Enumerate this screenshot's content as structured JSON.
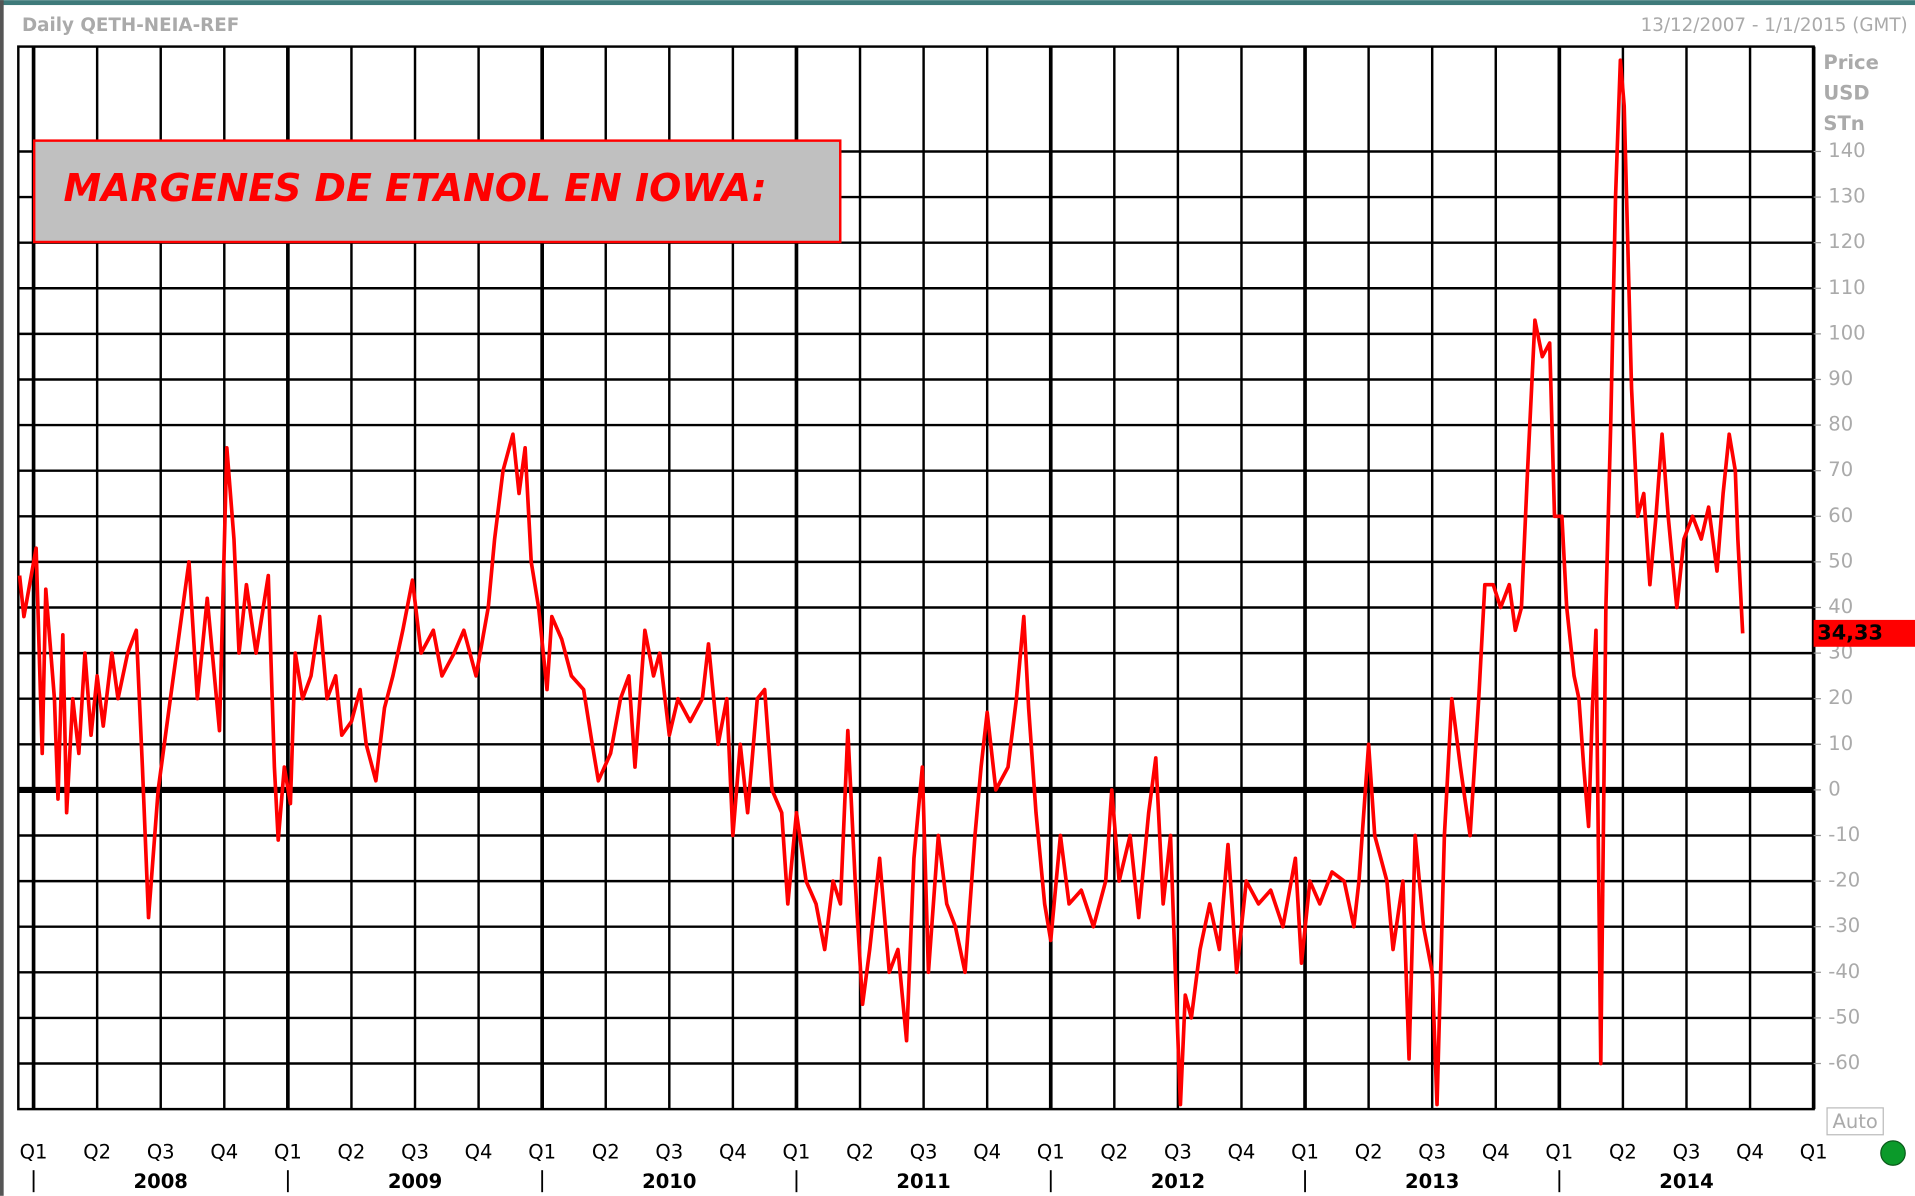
{
  "chart_data": {
    "type": "line",
    "header": "Daily QETH-NEIA-REF",
    "date_range": "13/12/2007 - 1/1/2015 (GMT)",
    "title": "MARGENES DE ETANOL EN IOWA:",
    "ylabel": [
      "Price",
      "USD",
      "STn"
    ],
    "auto_button": "Auto",
    "color": "#ff0000",
    "xlim": [
      2007.94,
      2015.0
    ],
    "ylim": [
      -70,
      163
    ],
    "yticks": [
      -60,
      -50,
      -40,
      -30,
      -20,
      -10,
      0,
      10,
      20,
      30,
      40,
      50,
      60,
      70,
      80,
      90,
      100,
      110,
      120,
      130,
      140
    ],
    "xticks": [
      {
        "value": 2008,
        "label": "Q1"
      },
      {
        "value": 2008.25,
        "label": "Q2"
      },
      {
        "value": 2008.5,
        "label": "Q3"
      },
      {
        "value": 2008.75,
        "label": "Q4"
      },
      {
        "value": 2009,
        "label": "Q1"
      },
      {
        "value": 2009.25,
        "label": "Q2"
      },
      {
        "value": 2009.5,
        "label": "Q3"
      },
      {
        "value": 2009.75,
        "label": "Q4"
      },
      {
        "value": 2010,
        "label": "Q1"
      },
      {
        "value": 2010.25,
        "label": "Q2"
      },
      {
        "value": 2010.5,
        "label": "Q3"
      },
      {
        "value": 2010.75,
        "label": "Q4"
      },
      {
        "value": 2011,
        "label": "Q1"
      },
      {
        "value": 2011.25,
        "label": "Q2"
      },
      {
        "value": 2011.5,
        "label": "Q3"
      },
      {
        "value": 2011.75,
        "label": "Q4"
      },
      {
        "value": 2012,
        "label": "Q1"
      },
      {
        "value": 2012.25,
        "label": "Q2"
      },
      {
        "value": 2012.5,
        "label": "Q3"
      },
      {
        "value": 2012.75,
        "label": "Q4"
      },
      {
        "value": 2013,
        "label": "Q1"
      },
      {
        "value": 2013.25,
        "label": "Q2"
      },
      {
        "value": 2013.5,
        "label": "Q3"
      },
      {
        "value": 2013.75,
        "label": "Q4"
      },
      {
        "value": 2014,
        "label": "Q1"
      },
      {
        "value": 2014.25,
        "label": "Q2"
      },
      {
        "value": 2014.5,
        "label": "Q3"
      },
      {
        "value": 2014.75,
        "label": "Q4"
      },
      {
        "value": 2015,
        "label": "Q1"
      }
    ],
    "year_ticks": [
      2008,
      2009,
      2010,
      2011,
      2012,
      2013,
      2014
    ],
    "grid": true,
    "x": [
      2007.945,
      2007.962,
      2008.01,
      2008.034,
      2008.048,
      2008.082,
      2008.096,
      2008.115,
      2008.13,
      2008.154,
      2008.178,
      2008.202,
      2008.226,
      2008.25,
      2008.274,
      2008.308,
      2008.332,
      2008.37,
      2008.404,
      2008.428,
      2008.452,
      2008.49,
      2008.538,
      2008.611,
      2008.644,
      2008.683,
      2008.731,
      2008.76,
      2008.788,
      2008.808,
      2008.837,
      2008.875,
      2008.923,
      2008.947,
      2008.962,
      2008.986,
      2009.01,
      2009.029,
      2009.058,
      2009.091,
      2009.125,
      2009.154,
      2009.188,
      2009.212,
      2009.25,
      2009.284,
      2009.308,
      2009.346,
      2009.38,
      2009.413,
      2009.452,
      2009.49,
      2009.524,
      2009.572,
      2009.606,
      2009.654,
      2009.692,
      2009.74,
      2009.788,
      2009.813,
      2009.846,
      2009.885,
      2009.909,
      2009.933,
      2009.957,
      2009.986,
      2010.019,
      2010.038,
      2010.077,
      2010.115,
      2010.163,
      2010.197,
      2010.221,
      2010.269,
      2010.308,
      2010.341,
      2010.365,
      2010.404,
      2010.438,
      2010.462,
      2010.5,
      2010.534,
      2010.582,
      2010.63,
      2010.654,
      2010.692,
      2010.726,
      2010.75,
      2010.779,
      2010.808,
      2010.846,
      2010.875,
      2010.904,
      2010.942,
      2010.966,
      2011.0,
      2011.038,
      2011.077,
      2011.111,
      2011.144,
      2011.173,
      2011.202,
      2011.231,
      2011.26,
      2011.288,
      2011.327,
      2011.365,
      2011.399,
      2011.433,
      2011.462,
      2011.495,
      2011.519,
      2011.558,
      2011.591,
      2011.625,
      2011.663,
      2011.702,
      2011.726,
      2011.75,
      2011.784,
      2011.832,
      2011.865,
      2011.894,
      2011.913,
      2011.942,
      2011.976,
      2012.0,
      2012.038,
      2012.072,
      2012.12,
      2012.168,
      2012.216,
      2012.24,
      2012.269,
      2012.312,
      2012.346,
      2012.385,
      2012.413,
      2012.442,
      2012.471,
      2012.49,
      2012.51,
      2012.529,
      2012.553,
      2012.587,
      2012.625,
      2012.663,
      2012.697,
      2012.731,
      2012.769,
      2012.817,
      2012.865,
      2012.913,
      2012.962,
      2012.986,
      2013.019,
      2013.058,
      2013.106,
      2013.154,
      2013.192,
      2013.212,
      2013.25,
      2013.274,
      2013.322,
      2013.346,
      2013.385,
      2013.409,
      2013.433,
      2013.466,
      2013.5,
      2013.519,
      2013.548,
      2013.577,
      2013.611,
      2013.649,
      2013.683,
      2013.707,
      2013.74,
      2013.769,
      2013.803,
      2013.827,
      2013.851,
      2013.875,
      2013.904,
      2013.933,
      2013.962,
      2013.981,
      2014.01,
      2014.029,
      2014.058,
      2014.077,
      2014.096,
      2014.115,
      2014.13,
      2014.144,
      2014.163,
      2014.183,
      2014.202,
      2014.221,
      2014.24,
      2014.255,
      2014.269,
      2014.284,
      2014.308,
      2014.332,
      2014.356,
      2014.38,
      2014.404,
      2014.428,
      2014.462,
      2014.49,
      2014.524,
      2014.558,
      2014.587,
      2014.62,
      2014.644,
      2014.668,
      2014.692,
      2014.702,
      2014.721
    ],
    "values": [
      47,
      38,
      53,
      8,
      44,
      20,
      -2,
      34,
      -5,
      20,
      8,
      30,
      12,
      25,
      14,
      30,
      20,
      30,
      35,
      5,
      -28,
      0,
      20,
      50,
      20,
      42,
      13,
      75,
      55,
      30,
      45,
      30,
      47,
      5,
      -11,
      5,
      -3,
      30,
      20,
      25,
      38,
      20,
      25,
      12,
      15,
      22,
      10,
      2,
      18,
      25,
      35,
      46,
      30,
      35,
      25,
      30,
      35,
      25,
      40,
      55,
      70,
      78,
      65,
      75,
      50,
      40,
      22,
      38,
      33,
      25,
      22,
      10,
      2,
      8,
      20,
      25,
      5,
      35,
      25,
      30,
      12,
      20,
      15,
      20,
      32,
      10,
      20,
      -10,
      10,
      -5,
      20,
      22,
      0,
      -5,
      -25,
      -5,
      -20,
      -25,
      -35,
      -20,
      -25,
      13,
      -20,
      -47,
      -35,
      -15,
      -40,
      -35,
      -55,
      -15,
      5,
      -40,
      -10,
      -25,
      -30,
      -40,
      -10,
      5,
      17,
      0,
      5,
      20,
      38,
      18,
      -5,
      -25,
      -33,
      -10,
      -25,
      -22,
      -30,
      -20,
      0,
      -20,
      -10,
      -28,
      -5,
      7,
      -25,
      -10,
      -40,
      -69,
      -45,
      -50,
      -35,
      -25,
      -35,
      -12,
      -40,
      -20,
      -25,
      -22,
      -30,
      -15,
      -38,
      -20,
      -25,
      -18,
      -20,
      -30,
      -20,
      10,
      -10,
      -20,
      -35,
      -20,
      -59,
      -10,
      -30,
      -40,
      -69,
      -10,
      20,
      5,
      -10,
      20,
      45,
      45,
      40,
      45,
      35,
      40,
      70,
      103,
      95,
      98,
      60,
      60,
      40,
      25,
      20,
      5,
      -8,
      18,
      35,
      -60,
      40,
      80,
      130,
      160,
      150,
      120,
      88,
      60,
      65,
      45,
      60,
      78,
      60,
      40,
      55,
      60,
      55,
      62,
      48,
      65,
      78,
      70,
      55,
      34.33
    ],
    "last_value": {
      "value": 34.33,
      "label": "34,33"
    }
  }
}
